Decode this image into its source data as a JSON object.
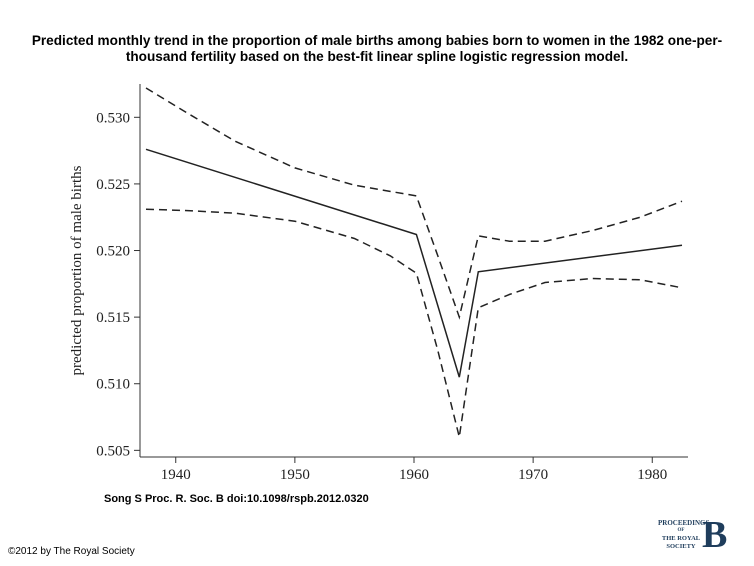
{
  "figure": {
    "title": "Predicted monthly trend in the proportion of male births among babies born to women in the 1982 one-per-thousand fertility based on the best-fit linear spline logistic regression model.",
    "citation": "Song S Proc. R. Soc. B doi:10.1098/rspb.2012.0320",
    "copyright": "©2012 by The Royal Society",
    "logo": {
      "lines": [
        "PROCEEDINGS",
        "OF",
        "THE ROYAL",
        "SOCIETY"
      ],
      "letter": "B"
    }
  },
  "chart_data": {
    "type": "line",
    "title": "",
    "xlabel": "",
    "ylabel": "predicted proportion of male births",
    "xlim": [
      1937,
      1983
    ],
    "ylim": [
      0.5045,
      0.5325
    ],
    "xticks": [
      1940,
      1950,
      1960,
      1970,
      1980
    ],
    "xtick_labels": [
      "1940",
      "1950",
      "1960",
      "1970",
      "1980"
    ],
    "yticks": [
      0.505,
      0.51,
      0.515,
      0.52,
      0.525,
      0.53
    ],
    "ytick_labels": [
      "0.505",
      "0.510",
      "0.515",
      "0.520",
      "0.525",
      "0.530"
    ],
    "grid": false,
    "series": [
      {
        "style": "solid",
        "x": [
          1937.5,
          1960.2,
          1963.8,
          1965.4,
          1982.5
        ],
        "y": [
          0.5276,
          0.5212,
          0.5105,
          0.5184,
          0.5204
        ]
      },
      {
        "style": "dashed",
        "x": [
          1937.5,
          1941,
          1945,
          1950,
          1955,
          1960.2,
          1962,
          1963.8,
          1965.4,
          1968,
          1971,
          1975,
          1979,
          1982.5
        ],
        "y": [
          0.5322,
          0.5303,
          0.5282,
          0.5262,
          0.5249,
          0.5241,
          0.5196,
          0.515,
          0.5211,
          0.5207,
          0.5207,
          0.5215,
          0.5225,
          0.5237
        ]
      },
      {
        "style": "dashed",
        "x": [
          1937.5,
          1941,
          1945,
          1950,
          1955,
          1958,
          1960.2,
          1962,
          1963.8,
          1965.4,
          1968,
          1971,
          1975,
          1979,
          1982.5
        ],
        "y": [
          0.5231,
          0.523,
          0.5228,
          0.5222,
          0.5209,
          0.5196,
          0.5183,
          0.5125,
          0.506,
          0.5157,
          0.5167,
          0.5176,
          0.5179,
          0.5178,
          0.5172
        ]
      }
    ]
  }
}
